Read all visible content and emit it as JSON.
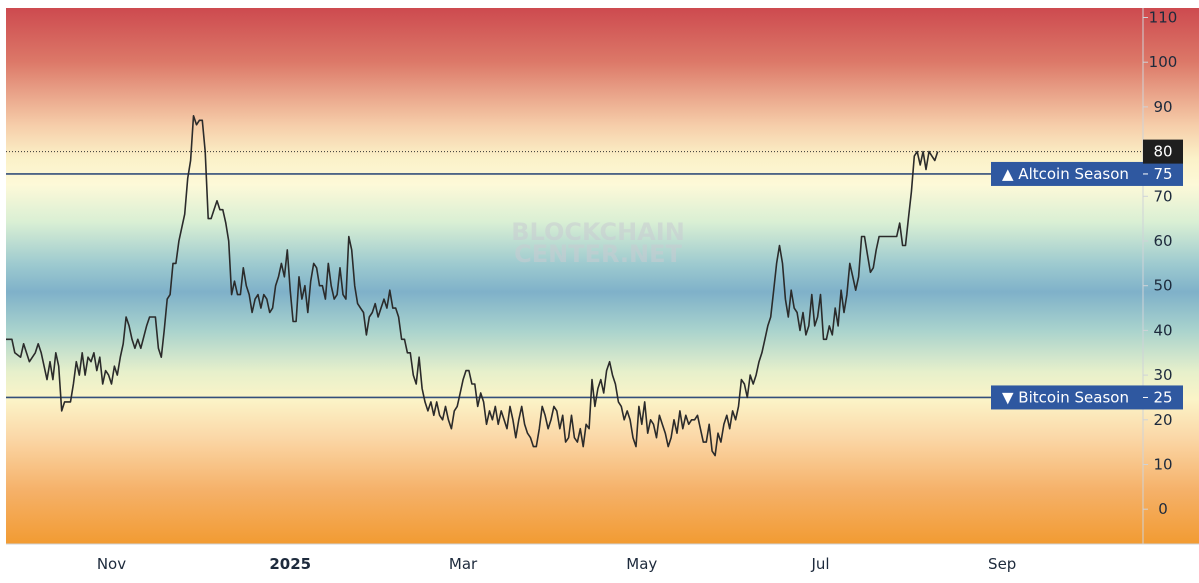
{
  "chart_data": {
    "type": "line",
    "title": "",
    "xlabel": "",
    "ylabel": "",
    "ylim": [
      -8,
      112
    ],
    "y_ticks": [
      0,
      10,
      20,
      30,
      40,
      50,
      60,
      70,
      80,
      90,
      100,
      110
    ],
    "x_ticks": [
      {
        "label": "Nov",
        "bold": false,
        "day": 38
      },
      {
        "label": "2025",
        "bold": true,
        "day": 99
      },
      {
        "label": "Mar",
        "bold": false,
        "day": 158
      },
      {
        "label": "May",
        "bold": false,
        "day": 219
      },
      {
        "label": "Jul",
        "bold": false,
        "day": 280
      },
      {
        "label": "Sep",
        "bold": false,
        "day": 342
      }
    ],
    "xlim_days": [
      2,
      428
    ],
    "current_value": "80",
    "series": [
      {
        "values": [
          [
            2,
            38
          ],
          [
            4,
            38
          ],
          [
            5,
            35
          ],
          [
            7,
            34
          ],
          [
            8,
            37
          ],
          [
            10,
            33
          ],
          [
            12,
            35
          ],
          [
            13,
            37
          ],
          [
            14,
            35
          ],
          [
            15,
            32
          ],
          [
            16,
            29
          ],
          [
            17,
            33
          ],
          [
            18,
            29
          ],
          [
            19,
            35
          ],
          [
            20,
            32
          ],
          [
            21,
            22
          ],
          [
            22,
            24
          ],
          [
            24,
            24
          ],
          [
            25,
            28
          ],
          [
            26,
            33
          ],
          [
            27,
            30
          ],
          [
            28,
            35
          ],
          [
            29,
            30
          ],
          [
            30,
            34
          ],
          [
            31,
            33
          ],
          [
            32,
            35
          ],
          [
            33,
            31
          ],
          [
            34,
            34
          ],
          [
            35,
            28
          ],
          [
            36,
            31
          ],
          [
            37,
            30
          ],
          [
            38,
            28
          ],
          [
            39,
            32
          ],
          [
            40,
            30
          ],
          [
            41,
            34
          ],
          [
            42,
            37
          ],
          [
            43,
            43
          ],
          [
            44,
            41
          ],
          [
            45,
            38
          ],
          [
            46,
            36
          ],
          [
            47,
            38
          ],
          [
            48,
            36
          ],
          [
            50,
            41
          ],
          [
            51,
            43
          ],
          [
            52,
            43
          ],
          [
            53,
            43
          ],
          [
            54,
            36
          ],
          [
            55,
            34
          ],
          [
            56,
            40
          ],
          [
            57,
            47
          ],
          [
            58,
            48
          ],
          [
            59,
            55
          ],
          [
            60,
            55
          ],
          [
            61,
            60
          ],
          [
            62,
            63
          ],
          [
            63,
            66
          ],
          [
            64,
            74
          ],
          [
            65,
            78
          ],
          [
            66,
            88
          ],
          [
            67,
            86
          ],
          [
            68,
            87
          ],
          [
            69,
            87
          ],
          [
            70,
            80
          ],
          [
            71,
            65
          ],
          [
            72,
            65
          ],
          [
            73,
            67
          ],
          [
            74,
            69
          ],
          [
            75,
            67
          ],
          [
            76,
            67
          ],
          [
            77,
            64
          ],
          [
            78,
            60
          ],
          [
            79,
            48
          ],
          [
            80,
            51
          ],
          [
            81,
            48
          ],
          [
            82,
            48
          ],
          [
            83,
            54
          ],
          [
            84,
            50
          ],
          [
            85,
            48
          ],
          [
            86,
            44
          ],
          [
            87,
            47
          ],
          [
            88,
            48
          ],
          [
            89,
            45
          ],
          [
            90,
            48
          ],
          [
            91,
            47
          ],
          [
            92,
            44
          ],
          [
            93,
            45
          ],
          [
            94,
            50
          ],
          [
            95,
            52
          ],
          [
            96,
            55
          ],
          [
            97,
            52
          ],
          [
            98,
            58
          ],
          [
            99,
            49
          ],
          [
            100,
            42
          ],
          [
            101,
            42
          ],
          [
            102,
            52
          ],
          [
            103,
            47
          ],
          [
            104,
            50
          ],
          [
            105,
            44
          ],
          [
            106,
            51
          ],
          [
            107,
            55
          ],
          [
            108,
            54
          ],
          [
            109,
            50
          ],
          [
            110,
            50
          ],
          [
            111,
            47
          ],
          [
            112,
            55
          ],
          [
            113,
            50
          ],
          [
            114,
            47
          ],
          [
            115,
            48
          ],
          [
            116,
            54
          ],
          [
            117,
            48
          ],
          [
            118,
            47
          ],
          [
            119,
            61
          ],
          [
            120,
            58
          ],
          [
            121,
            50
          ],
          [
            122,
            46
          ],
          [
            123,
            45
          ],
          [
            124,
            44
          ],
          [
            125,
            39
          ],
          [
            126,
            43
          ],
          [
            127,
            44
          ],
          [
            128,
            46
          ],
          [
            129,
            43
          ],
          [
            130,
            45
          ],
          [
            131,
            47
          ],
          [
            132,
            45
          ],
          [
            133,
            49
          ],
          [
            134,
            45
          ],
          [
            135,
            45
          ],
          [
            136,
            43
          ],
          [
            137,
            38
          ],
          [
            138,
            38
          ],
          [
            139,
            35
          ],
          [
            140,
            35
          ],
          [
            141,
            30
          ],
          [
            142,
            28
          ],
          [
            143,
            34
          ],
          [
            144,
            27
          ],
          [
            145,
            24
          ],
          [
            146,
            22
          ],
          [
            147,
            24
          ],
          [
            148,
            21
          ],
          [
            149,
            24
          ],
          [
            150,
            21
          ],
          [
            151,
            20
          ],
          [
            152,
            23
          ],
          [
            153,
            20
          ],
          [
            154,
            18
          ],
          [
            155,
            22
          ],
          [
            156,
            23
          ],
          [
            157,
            26
          ],
          [
            158,
            29
          ],
          [
            159,
            31
          ],
          [
            160,
            31
          ],
          [
            161,
            28
          ],
          [
            162,
            28
          ],
          [
            163,
            23
          ],
          [
            164,
            26
          ],
          [
            165,
            24
          ],
          [
            166,
            19
          ],
          [
            167,
            22
          ],
          [
            168,
            20
          ],
          [
            169,
            23
          ],
          [
            170,
            19
          ],
          [
            171,
            22
          ],
          [
            172,
            20
          ],
          [
            173,
            18
          ],
          [
            174,
            23
          ],
          [
            175,
            20
          ],
          [
            176,
            16
          ],
          [
            177,
            20
          ],
          [
            178,
            23
          ],
          [
            179,
            19
          ],
          [
            180,
            17
          ],
          [
            181,
            16
          ],
          [
            182,
            14
          ],
          [
            183,
            14
          ],
          [
            184,
            18
          ],
          [
            185,
            23
          ],
          [
            186,
            21
          ],
          [
            187,
            18
          ],
          [
            188,
            20
          ],
          [
            189,
            23
          ],
          [
            190,
            22
          ],
          [
            191,
            18
          ],
          [
            192,
            21
          ],
          [
            193,
            15
          ],
          [
            194,
            16
          ],
          [
            195,
            21
          ],
          [
            196,
            16
          ],
          [
            197,
            15
          ],
          [
            198,
            18
          ],
          [
            199,
            14
          ],
          [
            200,
            19
          ],
          [
            201,
            18
          ],
          [
            202,
            29
          ],
          [
            203,
            23
          ],
          [
            204,
            27
          ],
          [
            205,
            29
          ],
          [
            206,
            26
          ],
          [
            207,
            31
          ],
          [
            208,
            33
          ],
          [
            209,
            30
          ],
          [
            210,
            28
          ],
          [
            211,
            24
          ],
          [
            212,
            23
          ],
          [
            213,
            20
          ],
          [
            214,
            22
          ],
          [
            215,
            20
          ],
          [
            216,
            16
          ],
          [
            217,
            14
          ],
          [
            218,
            23
          ],
          [
            219,
            19
          ],
          [
            220,
            24
          ],
          [
            221,
            17
          ],
          [
            222,
            20
          ],
          [
            223,
            19
          ],
          [
            224,
            16
          ],
          [
            225,
            21
          ],
          [
            226,
            19
          ],
          [
            227,
            17
          ],
          [
            228,
            14
          ],
          [
            229,
            16
          ],
          [
            230,
            20
          ],
          [
            231,
            17
          ],
          [
            232,
            22
          ],
          [
            233,
            18
          ],
          [
            234,
            21
          ],
          [
            235,
            19
          ],
          [
            236,
            20
          ],
          [
            237,
            20
          ],
          [
            238,
            21
          ],
          [
            239,
            18
          ],
          [
            240,
            15
          ],
          [
            241,
            15
          ],
          [
            242,
            19
          ],
          [
            243,
            13
          ],
          [
            244,
            12
          ],
          [
            245,
            17
          ],
          [
            246,
            15
          ],
          [
            247,
            19
          ],
          [
            248,
            21
          ],
          [
            249,
            18
          ],
          [
            250,
            22
          ],
          [
            251,
            20
          ],
          [
            252,
            23
          ],
          [
            253,
            29
          ],
          [
            254,
            28
          ],
          [
            255,
            25
          ],
          [
            256,
            30
          ],
          [
            257,
            28
          ],
          [
            258,
            30
          ],
          [
            259,
            33
          ],
          [
            260,
            35
          ],
          [
            261,
            38
          ],
          [
            262,
            41
          ],
          [
            263,
            43
          ],
          [
            264,
            49
          ],
          [
            265,
            55
          ],
          [
            266,
            59
          ],
          [
            267,
            55
          ],
          [
            268,
            47
          ],
          [
            269,
            43
          ],
          [
            270,
            49
          ],
          [
            271,
            45
          ],
          [
            272,
            44
          ],
          [
            273,
            40
          ],
          [
            274,
            44
          ],
          [
            275,
            39
          ],
          [
            276,
            41
          ],
          [
            277,
            48
          ],
          [
            278,
            41
          ],
          [
            279,
            43
          ],
          [
            280,
            48
          ],
          [
            281,
            38
          ],
          [
            282,
            38
          ],
          [
            283,
            41
          ],
          [
            284,
            39
          ],
          [
            285,
            45
          ],
          [
            286,
            41
          ],
          [
            287,
            49
          ],
          [
            288,
            44
          ],
          [
            289,
            48
          ],
          [
            290,
            55
          ],
          [
            291,
            52
          ],
          [
            292,
            49
          ],
          [
            293,
            52
          ],
          [
            294,
            61
          ],
          [
            295,
            61
          ],
          [
            296,
            57
          ],
          [
            297,
            53
          ],
          [
            298,
            54
          ],
          [
            299,
            58
          ],
          [
            300,
            61
          ],
          [
            302,
            61
          ],
          [
            304,
            61
          ],
          [
            306,
            61
          ],
          [
            307,
            64
          ],
          [
            308,
            59
          ],
          [
            309,
            59
          ],
          [
            310,
            65
          ],
          [
            311,
            71
          ],
          [
            312,
            79
          ],
          [
            313,
            80
          ],
          [
            314,
            77
          ],
          [
            315,
            80
          ],
          [
            316,
            76
          ],
          [
            317,
            80
          ],
          [
            318,
            79
          ],
          [
            319,
            78
          ],
          [
            320,
            80
          ]
        ]
      }
    ],
    "reference_lines": [
      {
        "value": 75,
        "label": "▲ Altcoin Season",
        "value_label": "75"
      },
      {
        "value": 25,
        "label": "▼ Bitcoin Season",
        "value_label": "25"
      }
    ],
    "current_line_value": 80,
    "watermark": [
      "BLOCKCHAIN",
      "CENTER.NET"
    ],
    "colors": {
      "line": "#2b2b2b",
      "reference_line": "#344f7a",
      "badge": "#2f58a0",
      "current_badge": "#1f1f1f",
      "grid_top": "#cd4a4f",
      "grid_mid": "#7fb1c9",
      "grid_bottom": "#f29b32"
    },
    "legend": "none",
    "grid": false
  }
}
